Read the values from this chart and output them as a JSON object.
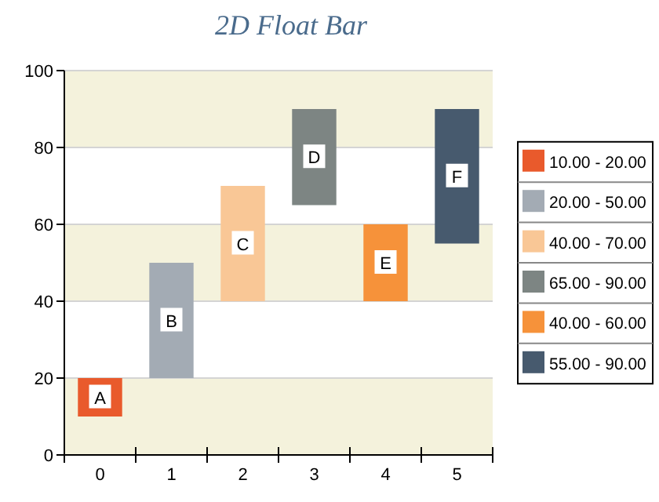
{
  "chart_data": {
    "type": "bar",
    "title": "2D Float Bar",
    "categories": [
      "0",
      "1",
      "2",
      "3",
      "4",
      "5"
    ],
    "series": [
      {
        "name": "10.00 - 20.00",
        "color": "#e95a2c",
        "values": [
          10,
          null,
          null,
          null,
          null,
          null
        ],
        "base": [
          10,
          null,
          null,
          null,
          null,
          null
        ]
      },
      {
        "name": "20.00 - 50.00",
        "color": "#a3abb4",
        "values": [
          null,
          30,
          null,
          null,
          null,
          null
        ],
        "base": [
          null,
          20,
          null,
          null,
          null,
          null
        ]
      },
      {
        "name": "40.00 - 70.00",
        "color": "#f9c796",
        "values": [
          null,
          null,
          30,
          null,
          null,
          null
        ],
        "base": [
          null,
          null,
          40,
          null,
          null,
          null
        ]
      },
      {
        "name": "65.00 - 90.00",
        "color": "#7d8583",
        "values": [
          null,
          null,
          null,
          25,
          null,
          null
        ],
        "base": [
          null,
          null,
          null,
          65,
          null,
          null
        ]
      },
      {
        "name": "40.00 - 60.00",
        "color": "#f6923a",
        "values": [
          null,
          null,
          null,
          null,
          20,
          null
        ],
        "base": [
          null,
          null,
          null,
          null,
          40,
          null
        ]
      },
      {
        "name": "55.00 - 90.00",
        "color": "#475a6e",
        "values": [
          null,
          null,
          null,
          null,
          null,
          35
        ],
        "base": [
          null,
          null,
          null,
          null,
          null,
          55
        ]
      }
    ],
    "annotations": [
      {
        "text": "A",
        "x": "0",
        "y": 15
      },
      {
        "text": "B",
        "x": "1",
        "y": 35
      },
      {
        "text": "C",
        "x": "2",
        "y": 55
      },
      {
        "text": "D",
        "x": "3",
        "y": 77.5
      },
      {
        "text": "E",
        "x": "4",
        "y": 50
      },
      {
        "text": "F",
        "x": "5",
        "y": 72.5
      }
    ],
    "ylim": [
      0,
      100
    ],
    "yticks": [
      0,
      20,
      40,
      60,
      80,
      100
    ],
    "grid": "y",
    "legend": "right"
  }
}
